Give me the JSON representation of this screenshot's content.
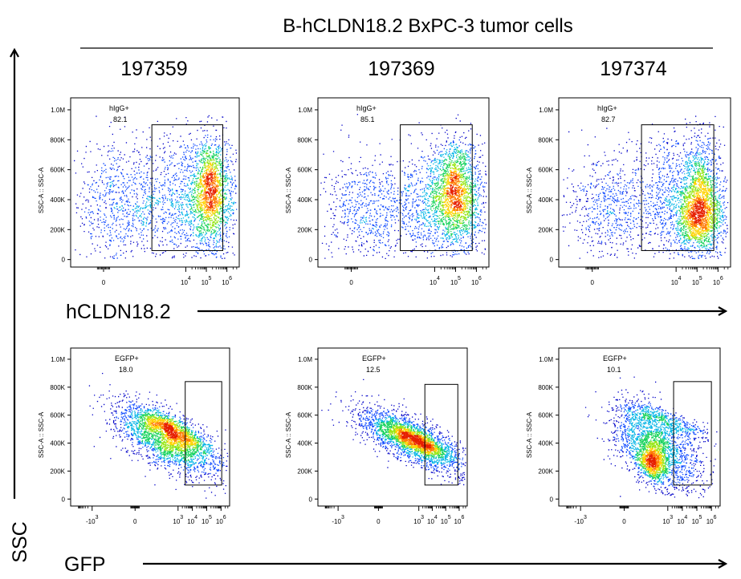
{
  "figure": {
    "title": "B-hCLDN18.2 BxPC-3 tumor cells",
    "y_axis_label": "SSC",
    "row_axis_labels": [
      "hCLDN18.2",
      "GFP"
    ],
    "column_labels": [
      "197359",
      "197369",
      "197374"
    ]
  },
  "colors": {
    "density": [
      "#0000c8",
      "#0a46ff",
      "#00b4e6",
      "#14d25a",
      "#96e614",
      "#ffd200",
      "#ff7800",
      "#e61e00"
    ]
  },
  "chart_data": [
    {
      "type": "scatter",
      "row": 0,
      "col": 0,
      "ylabel": "SSC-A :: SSC-A",
      "yticks": [
        "1.0M",
        "800K",
        "600K",
        "400K",
        "200K",
        "0"
      ],
      "yticks_values": [
        1000000,
        800000,
        600000,
        400000,
        200000,
        0
      ],
      "xticks": [
        "0",
        "10",
        "10",
        "10"
      ],
      "xticks_exp": [
        "",
        "4",
        "5",
        "6"
      ],
      "xticks_values": [
        0,
        4,
        5,
        6
      ],
      "xlim": [
        -1.6,
        6.6
      ],
      "ylim": [
        -50000,
        1080000
      ],
      "gate": {
        "name": "hIgG+",
        "percent": "82.1",
        "x": [
          2.35,
          5.8
        ],
        "y": [
          60000,
          900000
        ]
      },
      "populations": [
        {
          "cx": 4.4,
          "cy": 400000,
          "sx": 1.5,
          "sy": 220000,
          "angle": 10,
          "n": 1500
        },
        {
          "cx": 5.2,
          "cy": 460000,
          "sx": 0.42,
          "sy": 170000,
          "angle": 0,
          "n": 1200
        },
        {
          "cx": 0.6,
          "cy": 360000,
          "sx": 1.1,
          "sy": 200000,
          "angle": 0,
          "n": 650
        }
      ]
    },
    {
      "type": "scatter",
      "row": 0,
      "col": 1,
      "ylabel": "SSC-A :: SSC-A",
      "yticks": [
        "1.0M",
        "800K",
        "600K",
        "400K",
        "200K",
        "0"
      ],
      "yticks_values": [
        1000000,
        800000,
        600000,
        400000,
        200000,
        0
      ],
      "xticks": [
        "0",
        "10",
        "10",
        "10"
      ],
      "xticks_exp": [
        "",
        "4",
        "5",
        "6"
      ],
      "xticks_values": [
        0,
        4,
        5,
        6
      ],
      "xlim": [
        -1.6,
        6.6
      ],
      "ylim": [
        -50000,
        1080000
      ],
      "gate": {
        "name": "hIgG+",
        "percent": "85.1",
        "x": [
          2.35,
          5.8
        ],
        "y": [
          60000,
          900000
        ]
      },
      "populations": [
        {
          "cx": 4.5,
          "cy": 360000,
          "sx": 1.3,
          "sy": 190000,
          "angle": 15,
          "n": 1500
        },
        {
          "cx": 5.0,
          "cy": 470000,
          "sx": 0.5,
          "sy": 170000,
          "angle": 0,
          "n": 1300
        },
        {
          "cx": 0.7,
          "cy": 330000,
          "sx": 1.0,
          "sy": 170000,
          "angle": 0,
          "n": 600
        }
      ]
    },
    {
      "type": "scatter",
      "row": 0,
      "col": 2,
      "ylabel": "SSC-A :: SSC-A",
      "yticks": [
        "1.0M",
        "800K",
        "600K",
        "400K",
        "200K",
        "0"
      ],
      "yticks_values": [
        1000000,
        800000,
        600000,
        400000,
        200000,
        0
      ],
      "xticks": [
        "0",
        "10",
        "10",
        "10"
      ],
      "xticks_exp": [
        "",
        "4",
        "5",
        "6"
      ],
      "xticks_values": [
        0,
        4,
        5,
        6
      ],
      "xlim": [
        -1.6,
        6.6
      ],
      "ylim": [
        -50000,
        1080000
      ],
      "gate": {
        "name": "hIgG+",
        "percent": "82.7",
        "x": [
          2.35,
          5.8
        ],
        "y": [
          60000,
          900000
        ]
      },
      "populations": [
        {
          "cx": 4.5,
          "cy": 380000,
          "sx": 1.3,
          "sy": 220000,
          "angle": 15,
          "n": 1400
        },
        {
          "cx": 5.1,
          "cy": 280000,
          "sx": 0.5,
          "sy": 110000,
          "angle": 0,
          "n": 1200
        },
        {
          "cx": 5.2,
          "cy": 520000,
          "sx": 0.45,
          "sy": 170000,
          "angle": 0,
          "n": 600
        },
        {
          "cx": 0.8,
          "cy": 340000,
          "sx": 1.0,
          "sy": 180000,
          "angle": 0,
          "n": 600
        }
      ]
    },
    {
      "type": "scatter",
      "row": 1,
      "col": 0,
      "ylabel": "SSC-A :: SSC-A",
      "yticks": [
        "1.0M",
        "800K",
        "600K",
        "400K",
        "200K",
        "0"
      ],
      "yticks_values": [
        1000000,
        800000,
        600000,
        400000,
        200000,
        0
      ],
      "xticks": [
        "-10",
        "0",
        "10",
        "10",
        "10",
        "10"
      ],
      "xticks_exp": [
        "3",
        "",
        "3",
        "4",
        "5",
        "6"
      ],
      "xticks_values": [
        -3,
        0,
        3,
        4,
        5,
        6
      ],
      "xlim": [
        -4.5,
        6.6
      ],
      "ylim": [
        -50000,
        1080000
      ],
      "gate": {
        "name": "EGFP+",
        "percent": "18.0",
        "x": [
          3.5,
          6.05
        ],
        "y": [
          100000,
          840000
        ]
      },
      "populations": [
        {
          "cx": 2.3,
          "cy": 420000,
          "sx": 0.85,
          "sy": 210000,
          "angle": 60,
          "n": 2300
        },
        {
          "cx": 2.6,
          "cy": 500000,
          "sx": 0.35,
          "sy": 140000,
          "angle": 60,
          "n": 900
        }
      ]
    },
    {
      "type": "scatter",
      "row": 1,
      "col": 1,
      "ylabel": "SSC-A :: SSC-A",
      "yticks": [
        "1.0M",
        "800K",
        "600K",
        "400K",
        "200K",
        "0"
      ],
      "yticks_values": [
        1000000,
        800000,
        600000,
        400000,
        200000,
        0
      ],
      "xticks": [
        "-10",
        "0",
        "10",
        "10",
        "10",
        "10"
      ],
      "xticks_exp": [
        "3",
        "",
        "3",
        "4",
        "5",
        "6"
      ],
      "xticks_values": [
        -3,
        0,
        3,
        4,
        5,
        6
      ],
      "xlim": [
        -4.5,
        6.6
      ],
      "ylim": [
        -50000,
        1080000
      ],
      "gate": {
        "name": "EGFP+",
        "percent": "12.5",
        "x": [
          3.45,
          5.9
        ],
        "y": [
          100000,
          820000
        ]
      },
      "populations": [
        {
          "cx": 2.5,
          "cy": 420000,
          "sx": 0.7,
          "sy": 220000,
          "angle": 65,
          "n": 2300
        },
        {
          "cx": 2.6,
          "cy": 430000,
          "sx": 0.3,
          "sy": 130000,
          "angle": 65,
          "n": 900
        }
      ]
    },
    {
      "type": "scatter",
      "row": 1,
      "col": 2,
      "ylabel": "SSC-A :: SSC-A",
      "yticks": [
        "1.0M",
        "800K",
        "600K",
        "400K",
        "200K",
        "0"
      ],
      "yticks_values": [
        1000000,
        800000,
        600000,
        400000,
        200000,
        0
      ],
      "xticks": [
        "-10",
        "0",
        "10",
        "10",
        "10",
        "10"
      ],
      "xticks_exp": [
        "3",
        "",
        "3",
        "4",
        "5",
        "6"
      ],
      "xticks_values": [
        -3,
        0,
        3,
        4,
        5,
        6
      ],
      "xlim": [
        -4.5,
        6.6
      ],
      "ylim": [
        -50000,
        1080000
      ],
      "gate": {
        "name": "EGFP+",
        "percent": "10.1",
        "x": [
          3.4,
          6.0
        ],
        "y": [
          100000,
          840000
        ]
      },
      "populations": [
        {
          "cx": 2.2,
          "cy": 360000,
          "sx": 1.0,
          "sy": 190000,
          "angle": 45,
          "n": 2000
        },
        {
          "cx": 1.9,
          "cy": 260000,
          "sx": 0.45,
          "sy": 70000,
          "angle": 20,
          "n": 700
        },
        {
          "cx": 2.8,
          "cy": 560000,
          "sx": 0.35,
          "sy": 160000,
          "angle": 70,
          "n": 500
        }
      ]
    }
  ]
}
